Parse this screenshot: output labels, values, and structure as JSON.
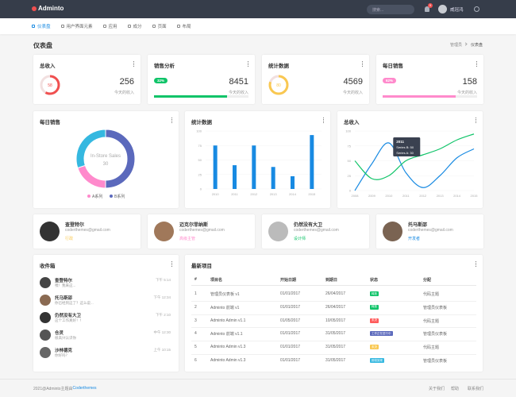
{
  "header": {
    "brand": "Adminto",
    "search": "搜索...",
    "badge": "9",
    "user": "威冠鸿"
  },
  "nav": [
    "仪表盘",
    "用户界面元素",
    "应用",
    "成分",
    "页面",
    "布局"
  ],
  "page": {
    "title": "仪表盘",
    "breadcrumb": [
      "管理员",
      "仪表盘"
    ]
  },
  "stats": [
    {
      "title": "总收入",
      "value": 256,
      "caption": "今天的收入",
      "progress": 58,
      "color": "#f05050"
    },
    {
      "title": "销售分析",
      "value": 8451,
      "caption": "今天的收入",
      "badge": "32%",
      "progress": 77,
      "color": "#10c469"
    },
    {
      "title": "统计数据",
      "value": 4569,
      "caption": "今天的收入",
      "progress": 80,
      "color": "#f9c851"
    },
    {
      "title": "每日销售",
      "value": 158,
      "caption": "今天的收入",
      "badge": "62%",
      "progress": 77,
      "color": "#ff8acc"
    }
  ],
  "donut": {
    "title": "每日销售",
    "center_label": "In-Store Sales",
    "center_value": 30,
    "values": [
      50,
      20,
      30
    ],
    "colors": [
      "#5b69bc",
      "#ff8acc",
      "#35b8e0"
    ],
    "legend": [
      "A系列",
      "B系列"
    ],
    "legend_colors": [
      "#ff8acc",
      "#5b69bc"
    ]
  },
  "bars": {
    "title": "统计数据",
    "categories": [
      "2010",
      "2011",
      "2012",
      "2013",
      "2014",
      "2015"
    ],
    "values": [
      75,
      41,
      75,
      38,
      22,
      93
    ],
    "ylim": [
      0,
      100
    ],
    "yticks": [
      0,
      25,
      50,
      75,
      100
    ],
    "color": "#188ae2"
  },
  "lines": {
    "title": "总收入",
    "categories": [
      "2008",
      "2009",
      "2010",
      "2011",
      "2012",
      "2013",
      "2014",
      "2015"
    ],
    "series": [
      {
        "name": "Series A",
        "color": "#188ae2",
        "values": [
          0,
          45,
          80,
          30,
          5,
          25,
          55,
          70
        ]
      },
      {
        "name": "Series B",
        "color": "#10c469",
        "values": [
          50,
          20,
          25,
          50,
          60,
          70,
          85,
          95
        ]
      }
    ],
    "ylim": [
      0,
      100
    ],
    "yticks": [
      0,
      25,
      50,
      75,
      100
    ],
    "tooltip": [
      "2011",
      "Series B: 50",
      "Series A: 30"
    ]
  },
  "users": [
    {
      "name": "查登特尔",
      "email": "coderthemes@gmail.com",
      "role": "行政",
      "role_color": "#f9c851"
    },
    {
      "name": "迈克尔菲纳斯",
      "email": "coderthemes@gmail.com",
      "role": "高级主管",
      "role_color": "#ff8acc"
    },
    {
      "name": "仍然没有大卫",
      "email": "coderthemes@gmail.com",
      "role": "设计师",
      "role_color": "#10c469"
    },
    {
      "name": "托马斯邵",
      "email": "coderthemes@gmail.com",
      "role": "开发者",
      "role_color": "#188ae2"
    }
  ],
  "inbox": {
    "title": "收件箱",
    "messages": [
      {
        "name": "查登特尔",
        "text": "嘿！我来这...",
        "time": "下午 5:14"
      },
      {
        "name": "托马斯邵",
        "text": "你已经到这了？这么说...",
        "time": "下午 12:34"
      },
      {
        "name": "仍然没有大卫",
        "text": "这个工作真好！！",
        "time": "下午 2:10"
      },
      {
        "name": "仓灵",
        "text": "很高兴认识你",
        "time": "中午 12:30"
      },
      {
        "name": "沙林德克",
        "text": "你好吗？",
        "time": "上午 10:15"
      }
    ]
  },
  "projects": {
    "title": "最新项目",
    "headers": [
      "#",
      "项目名",
      "开始日期",
      "到期日",
      "状态",
      "分配"
    ],
    "rows": [
      [
        "1",
        "管理员仪表板 v1",
        "01/01/2017",
        "26/04/2017",
        "释放",
        "代码主题"
      ],
      [
        "2",
        "Adminto 前端 v1",
        "01/01/2017",
        "26/04/2017",
        "释放",
        "管理员仪表板"
      ],
      [
        "3",
        "Adminto Admin v1.1",
        "01/05/2017",
        "10/05/2017",
        "未决",
        "代码主题"
      ],
      [
        "4",
        "Adminto 前端 v1.1",
        "01/01/2017",
        "31/05/2017",
        "工作正在进行中",
        "管理员仪表板"
      ],
      [
        "5",
        "Adminto Admin v1.3",
        "01/01/2017",
        "31/05/2017",
        "未决",
        "代码主题"
      ],
      [
        "6",
        "Adminto Admin v1.3",
        "01/01/2017",
        "31/05/2017",
        "即将到来",
        "管理员仪表板"
      ]
    ],
    "status_colors": [
      "#10c469",
      "#10c469",
      "#ff5b5b",
      "#5b69bc",
      "#f9c851",
      "#35b8e0"
    ]
  },
  "footer": {
    "copyright": "2021@Adminto主题由",
    "link": "Coderthemes",
    "links": [
      "关于我们",
      "帮助",
      "联系我们"
    ]
  }
}
